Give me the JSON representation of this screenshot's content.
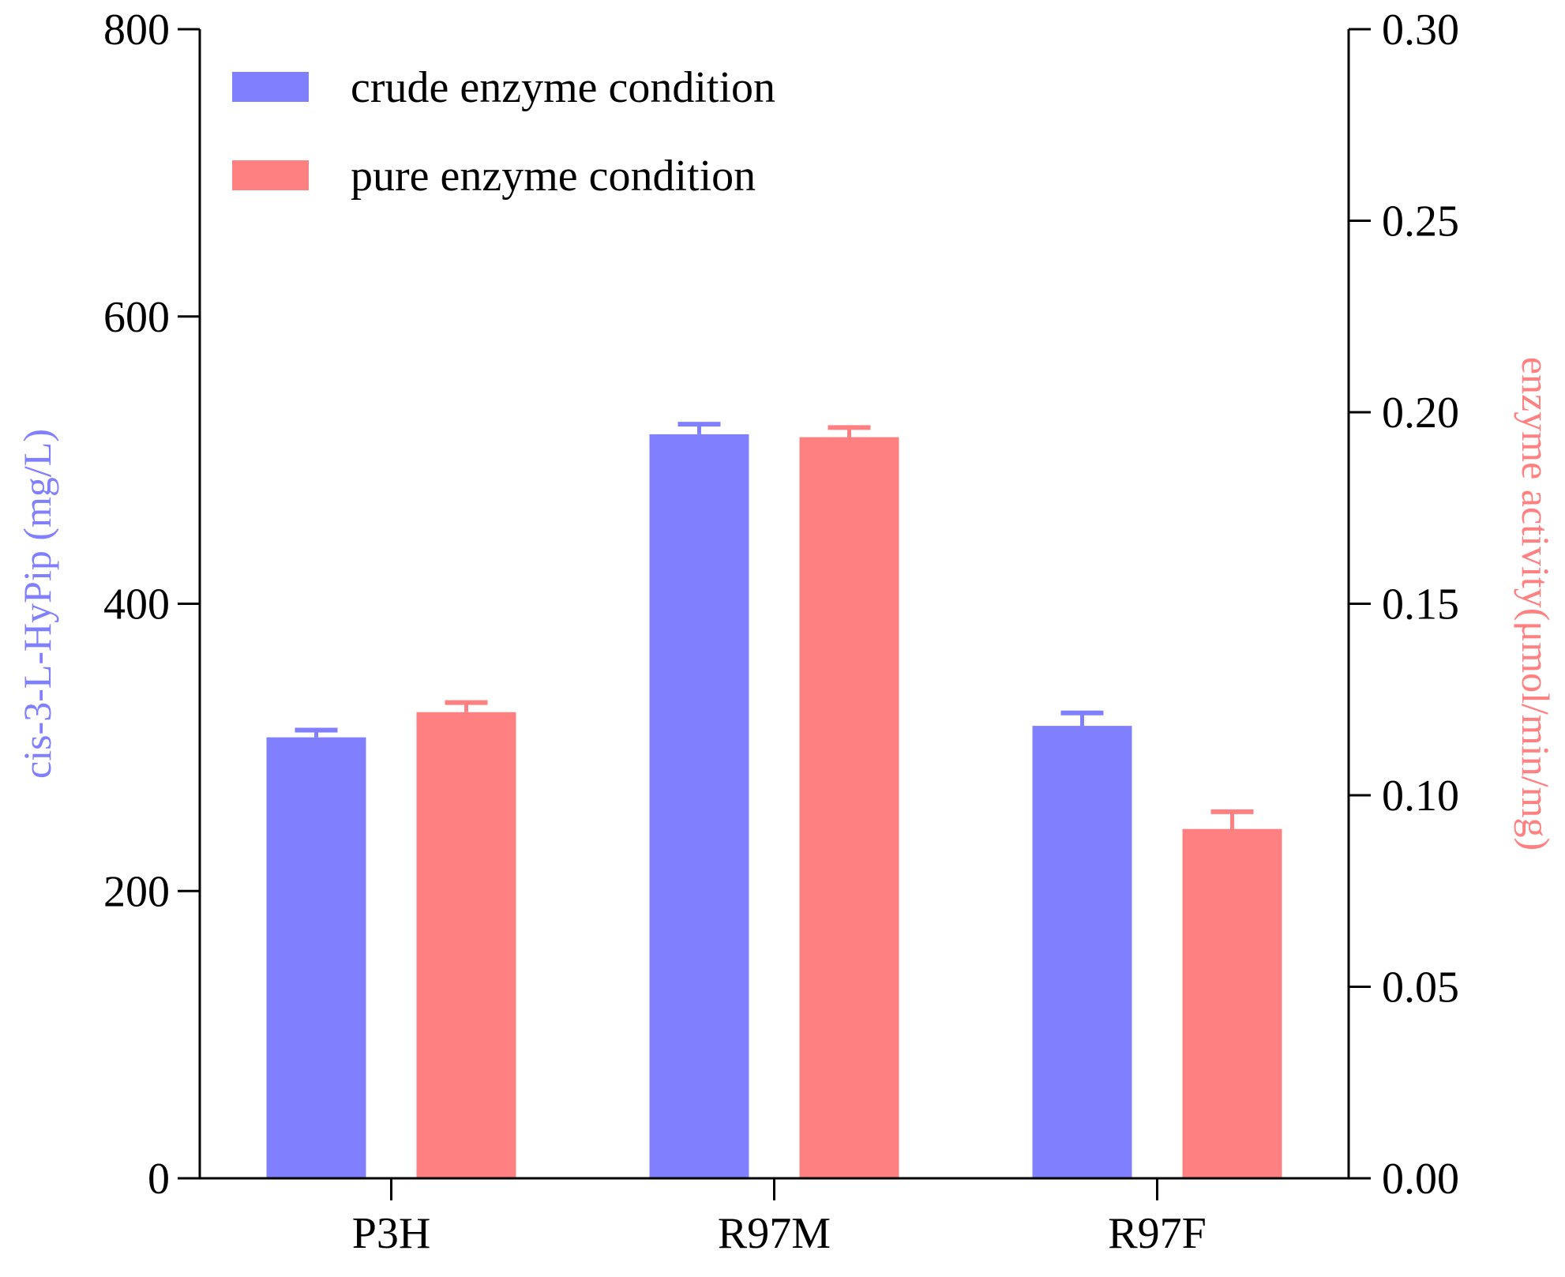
{
  "chart_data": {
    "type": "bar",
    "categories": [
      "P3H",
      "R97M",
      "R97F"
    ],
    "series": [
      {
        "name": "crude enzyme condition",
        "axis": "left",
        "color": "#8080ff",
        "values": [
          307,
          518,
          315
        ],
        "errors": [
          5,
          7,
          9
        ]
      },
      {
        "name": "pure enzyme condition",
        "axis": "right",
        "color": "#ff8080",
        "values": [
          0.1217,
          0.1935,
          0.0912
        ],
        "errors": [
          0.0025,
          0.0025,
          0.0045
        ]
      }
    ],
    "y_left": {
      "label": "cis-3-L-HyPip (mg/L)",
      "label_color": "#8080ff",
      "range": [
        0,
        800
      ],
      "ticks": [
        "0",
        "200",
        "400",
        "600",
        "800"
      ]
    },
    "y_right": {
      "label": "enzyme activity(μmol/min/mg)",
      "label_color": "#ff8080",
      "range": [
        0,
        0.3
      ],
      "ticks": [
        "0.00",
        "0.05",
        "0.10",
        "0.15",
        "0.20",
        "0.25",
        "0.30"
      ]
    },
    "title": "",
    "xlabel": "",
    "grid": false,
    "legend_position": "top-left"
  }
}
